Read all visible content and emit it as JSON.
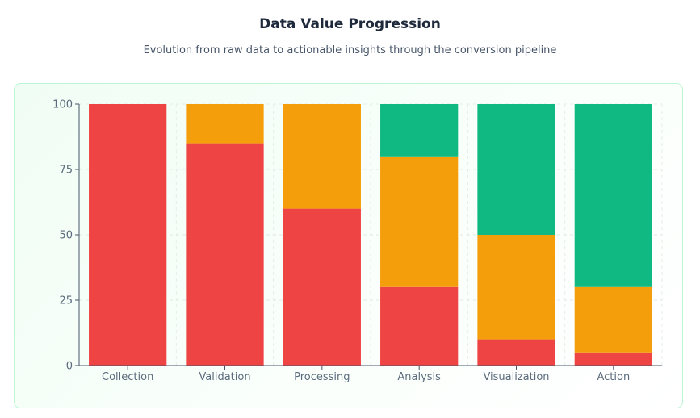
{
  "header": {
    "title": "Data Value Progression",
    "subtitle": "Evolution from raw data to actionable insights through the conversion pipeline"
  },
  "chart_data": {
    "type": "bar",
    "stacked": true,
    "categories": [
      "Collection",
      "Validation",
      "Processing",
      "Analysis",
      "Visualization",
      "Action"
    ],
    "series": [
      {
        "values": [
          100,
          85,
          60,
          30,
          10,
          5
        ],
        "color": "#ef4444"
      },
      {
        "values": [
          0,
          15,
          40,
          50,
          40,
          25
        ],
        "color": "#f59e0b"
      },
      {
        "values": [
          0,
          0,
          0,
          20,
          50,
          70
        ],
        "color": "#10b981"
      }
    ],
    "yticks": [
      0,
      25,
      50,
      75,
      100
    ],
    "ylim": [
      0,
      100
    ],
    "grid": true,
    "legend": "none"
  }
}
